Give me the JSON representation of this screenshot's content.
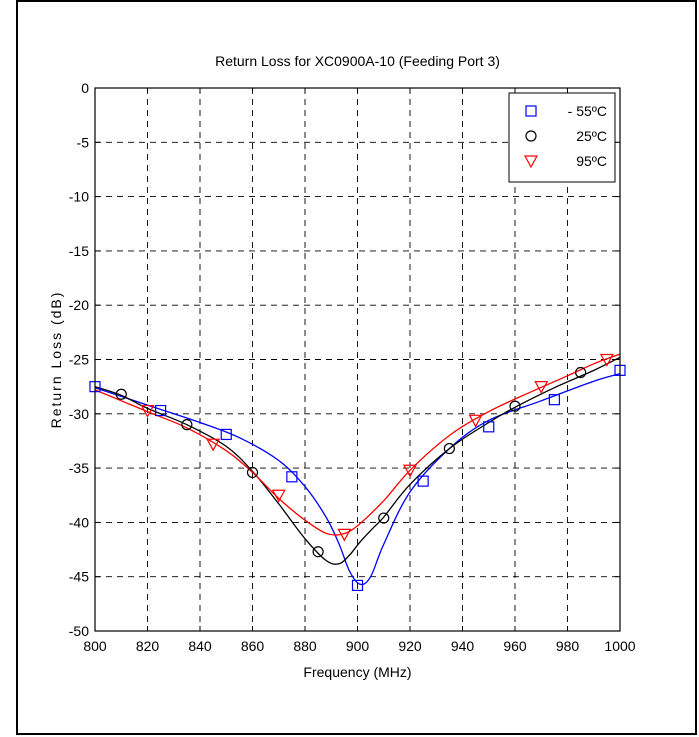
{
  "chart_data": {
    "type": "line",
    "title": "Return Loss for XC0900A-10 (Feeding Port 3)",
    "xlabel": "Frequency (MHz)",
    "ylabel": "Return Loss (dB)",
    "xlim": [
      800,
      1000
    ],
    "ylim": [
      -50,
      0
    ],
    "xticks": [
      "800",
      "820",
      "840",
      "860",
      "880",
      "900",
      "920",
      "940",
      "960",
      "980",
      "1000"
    ],
    "yticks": [
      "0",
      "-5",
      "-10",
      "-15",
      "-20",
      "-25",
      "-30",
      "-35",
      "-40",
      "-45",
      "-50"
    ],
    "grid": true,
    "legend_position": "top-right",
    "series": [
      {
        "name": "- 55ºC",
        "marker": "square",
        "color": "#0000ff",
        "markers": {
          "x": [
            800,
            825,
            850,
            875,
            900,
            925,
            950,
            975,
            1000
          ],
          "y": [
            -27.5,
            -29.7,
            -31.9,
            -35.8,
            -45.8,
            -36.2,
            -31.2,
            -28.7,
            -26.0
          ]
        },
        "curve": {
          "x": [
            800,
            820,
            840,
            855,
            870,
            880,
            888,
            893,
            897,
            901,
            905,
            910,
            920,
            935,
            950,
            970,
            990,
            1000
          ],
          "y": [
            -27.6,
            -29.2,
            -30.8,
            -32.2,
            -34.3,
            -36.7,
            -39.5,
            -42.0,
            -44.5,
            -45.7,
            -45.0,
            -42.0,
            -37.2,
            -33.2,
            -30.6,
            -28.8,
            -27.0,
            -26.3
          ]
        }
      },
      {
        "name": "25ºC",
        "marker": "circle",
        "color": "#000000",
        "markers": {
          "x": [
            810,
            835,
            860,
            885,
            910,
            935,
            960,
            985
          ],
          "y": [
            -28.2,
            -31.0,
            -35.4,
            -42.7,
            -39.6,
            -33.2,
            -29.3,
            -26.2
          ]
        },
        "curve": {
          "x": [
            800,
            810,
            820,
            835,
            850,
            860,
            870,
            880,
            888,
            893,
            897,
            901,
            906,
            910,
            920,
            935,
            950,
            960,
            975,
            990,
            1000
          ],
          "y": [
            -27.5,
            -28.3,
            -29.5,
            -31.0,
            -33.0,
            -35.3,
            -38.3,
            -41.5,
            -43.5,
            -43.8,
            -43.0,
            -41.8,
            -40.5,
            -39.5,
            -36.5,
            -33.2,
            -30.8,
            -29.4,
            -27.6,
            -26.0,
            -24.8
          ]
        }
      },
      {
        "name": "95ºC",
        "marker": "triangle-down",
        "color": "#ff0000",
        "markers": {
          "x": [
            820,
            845,
            870,
            895,
            920,
            945,
            970,
            995
          ],
          "y": [
            -29.7,
            -32.8,
            -37.5,
            -41.1,
            -35.2,
            -30.6,
            -27.5,
            -25.0
          ]
        },
        "curve": {
          "x": [
            800,
            810,
            820,
            835,
            850,
            860,
            870,
            880,
            888,
            894,
            900,
            910,
            920,
            935,
            950,
            965,
            980,
            990,
            1000
          ],
          "y": [
            -27.8,
            -28.8,
            -29.8,
            -31.3,
            -33.4,
            -35.4,
            -37.8,
            -39.8,
            -41.0,
            -41.1,
            -40.3,
            -38.0,
            -35.2,
            -32.0,
            -29.8,
            -28.1,
            -26.5,
            -25.4,
            -24.5
          ]
        }
      }
    ]
  }
}
